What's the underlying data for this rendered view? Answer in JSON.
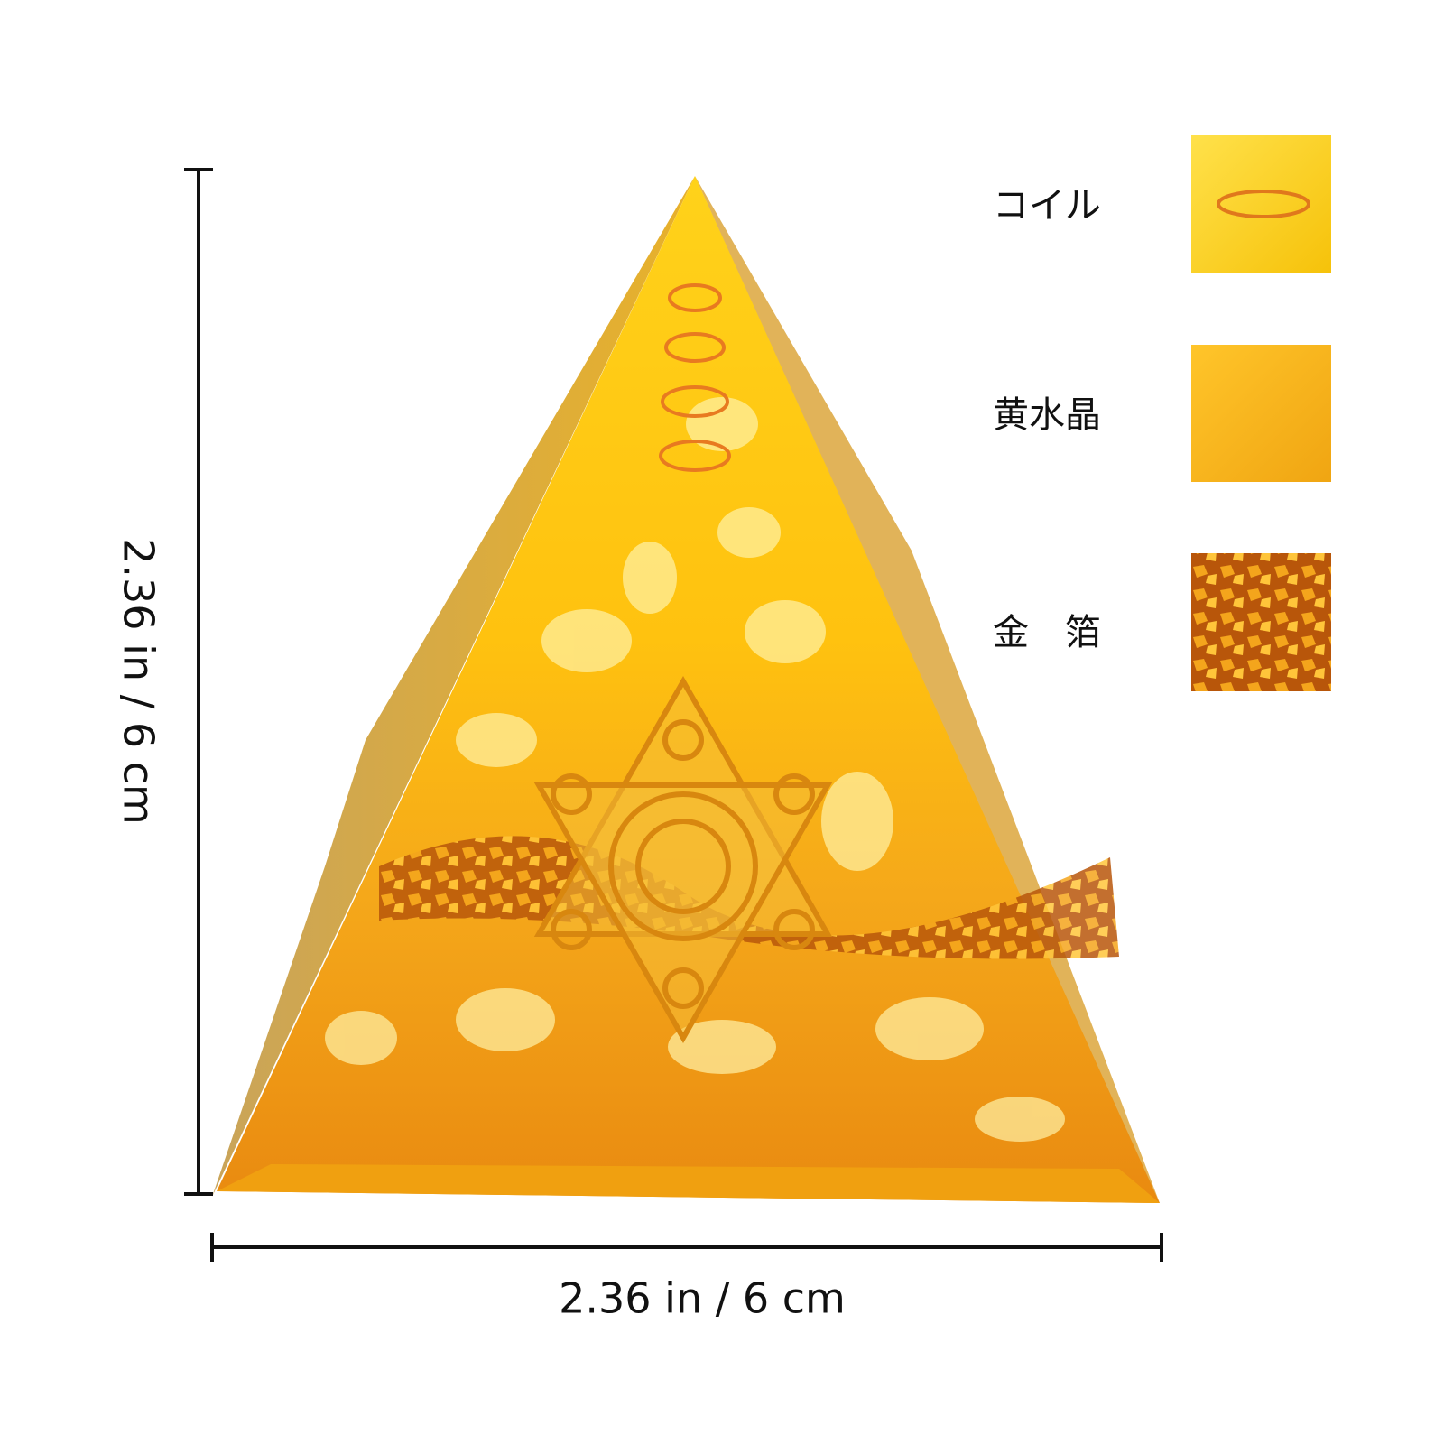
{
  "dimensions": {
    "height": "2.36 in / 6 cm",
    "width": "2.36 in / 6 cm"
  },
  "materials": [
    {
      "label": "コイル"
    },
    {
      "label": "黄水晶"
    },
    {
      "label": "金　箔"
    }
  ]
}
